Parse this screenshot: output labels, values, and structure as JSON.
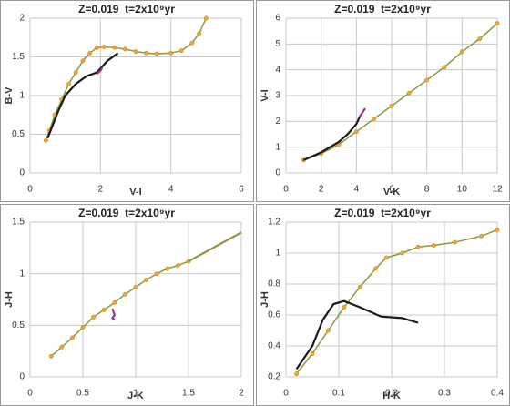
{
  "chart_data": [
    {
      "type": "line",
      "title": "Z=0.019  t=2x10⁹yr",
      "xlabel": "V-I",
      "ylabel": "B-V",
      "xlim": [
        0,
        6
      ],
      "xticks": [
        0,
        2,
        4,
        6
      ],
      "ylim": [
        0,
        2
      ],
      "yticks": [
        0,
        0.5,
        1,
        1.5,
        2
      ],
      "grid": true,
      "series": [
        {
          "color": "#8a9a3a",
          "marker_color": "#f0a830",
          "x": [
            0.45,
            0.55,
            0.7,
            0.9,
            1.1,
            1.3,
            1.5,
            1.7,
            1.9,
            2.1,
            2.4,
            2.7,
            3.0,
            3.3,
            3.6,
            4.0,
            4.3,
            4.6,
            4.8,
            5.0
          ],
          "values": [
            0.42,
            0.55,
            0.75,
            0.95,
            1.15,
            1.3,
            1.45,
            1.55,
            1.62,
            1.63,
            1.62,
            1.6,
            1.57,
            1.55,
            1.54,
            1.55,
            1.58,
            1.68,
            1.8,
            2.0
          ]
        },
        {
          "color": "#1a1a1a",
          "x": [
            0.5,
            0.8,
            1.0,
            1.3,
            1.6,
            1.9,
            2.0,
            2.2,
            2.5
          ],
          "values": [
            0.45,
            0.8,
            1.0,
            1.15,
            1.25,
            1.3,
            1.35,
            1.45,
            1.55
          ]
        },
        {
          "color": "#a0308a",
          "x": [
            1.9,
            2.0,
            2.05
          ],
          "values": [
            1.28,
            1.32,
            1.36
          ]
        }
      ]
    },
    {
      "type": "line",
      "title": "Z=0.019  t=2x10⁹yr",
      "xlabel": "V-K",
      "ylabel": "V-I",
      "xlim": [
        0,
        12
      ],
      "xticks": [
        0,
        2,
        4,
        6,
        8,
        10,
        12
      ],
      "ylim": [
        0,
        6
      ],
      "yticks": [
        0,
        1,
        2,
        3,
        4,
        5,
        6
      ],
      "grid": true,
      "series": [
        {
          "color": "#8a9a3a",
          "marker_color": "#f0a830",
          "x": [
            1,
            2,
            3,
            4,
            5,
            6,
            7,
            8,
            9,
            10,
            11,
            12
          ],
          "values": [
            0.5,
            0.75,
            1.1,
            1.6,
            2.1,
            2.6,
            3.1,
            3.6,
            4.1,
            4.7,
            5.2,
            5.8
          ]
        },
        {
          "color": "#1a1a1a",
          "x": [
            1,
            2,
            3,
            3.5,
            4,
            4.2
          ],
          "values": [
            0.5,
            0.8,
            1.2,
            1.5,
            1.9,
            2.2
          ]
        },
        {
          "color": "#a0308a",
          "x": [
            4.2,
            4.5
          ],
          "values": [
            2.2,
            2.5
          ]
        }
      ]
    },
    {
      "type": "line",
      "title": "Z=0.019  t=2x10⁹yr",
      "xlabel": "J-K",
      "ylabel": "J-H",
      "xlim": [
        0,
        2
      ],
      "xticks": [
        0,
        0.5,
        1,
        1.5,
        2
      ],
      "ylim": [
        0,
        1.5
      ],
      "yticks": [
        0,
        0.5,
        1,
        1.5
      ],
      "grid": true,
      "series": [
        {
          "color": "#8a9a3a",
          "marker_color": "#f0a830",
          "x": [
            0.2,
            0.3,
            0.4,
            0.5,
            0.6,
            0.7,
            0.8,
            0.9,
            1.0,
            1.1,
            1.2,
            1.3,
            1.4,
            1.5
          ],
          "values": [
            0.2,
            0.29,
            0.38,
            0.48,
            0.58,
            0.65,
            0.72,
            0.8,
            0.87,
            0.94,
            1.0,
            1.05,
            1.08,
            1.12
          ]
        },
        {
          "color": "#8a9a3a",
          "x": [
            1.5,
            2.0
          ],
          "values": [
            1.12,
            1.4
          ]
        },
        {
          "color": "#a0308a",
          "x": [
            0.78,
            0.8,
            0.78,
            0.8
          ],
          "values": [
            0.66,
            0.6,
            0.57,
            0.55
          ]
        }
      ]
    },
    {
      "type": "line",
      "title": "Z=0.019  t=2x10⁹yr",
      "xlabel": "H-K",
      "ylabel": "J-H",
      "xlim": [
        0,
        0.4
      ],
      "xticks": [
        0,
        0.1,
        0.2,
        0.3,
        0.4
      ],
      "ylim": [
        0.2,
        1.2
      ],
      "yticks": [
        0.2,
        0.4,
        0.6,
        0.8,
        1,
        1.2
      ],
      "grid": true,
      "series": [
        {
          "color": "#8a9a3a",
          "marker_color": "#f0a830",
          "x": [
            0.02,
            0.05,
            0.08,
            0.11,
            0.14,
            0.17,
            0.19,
            0.22,
            0.25,
            0.28,
            0.32,
            0.37,
            0.4
          ],
          "values": [
            0.22,
            0.35,
            0.5,
            0.65,
            0.78,
            0.9,
            0.97,
            1.0,
            1.04,
            1.05,
            1.07,
            1.11,
            1.15
          ]
        },
        {
          "color": "#1a1a1a",
          "x": [
            0.02,
            0.05,
            0.07,
            0.09,
            0.11,
            0.14,
            0.18,
            0.22,
            0.25
          ],
          "values": [
            0.25,
            0.4,
            0.57,
            0.67,
            0.69,
            0.65,
            0.59,
            0.58,
            0.55
          ]
        }
      ]
    }
  ]
}
